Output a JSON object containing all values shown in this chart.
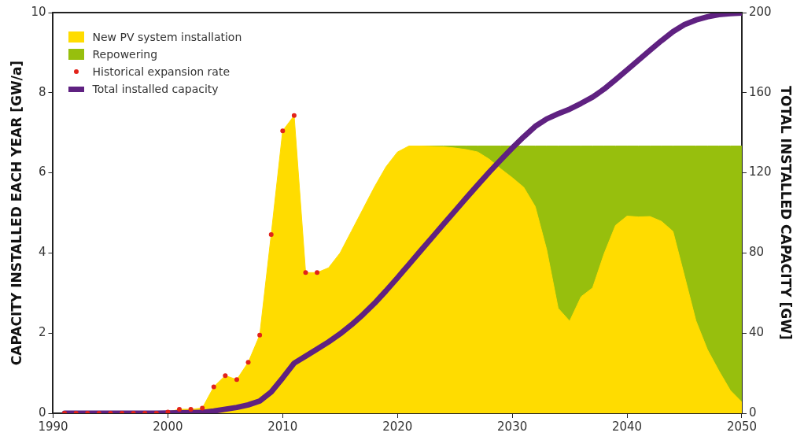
{
  "chart_data": {
    "type": "area",
    "stacked": true,
    "xlabel": null,
    "ylabel": "CAPACITY INSTALLED EACH YEAR [GW/a]",
    "y2label": "TOTAL INSTALLED CAPACITY [GW]",
    "x": [
      1991,
      1992,
      1993,
      1994,
      1995,
      1996,
      1997,
      1998,
      1999,
      2000,
      2001,
      2002,
      2003,
      2004,
      2005,
      2006,
      2007,
      2008,
      2009,
      2010,
      2011,
      2012,
      2013,
      2014,
      2015,
      2016,
      2017,
      2018,
      2019,
      2020,
      2021,
      2022,
      2023,
      2024,
      2025,
      2026,
      2027,
      2028,
      2029,
      2030,
      2031,
      2032,
      2033,
      2034,
      2035,
      2036,
      2037,
      2038,
      2039,
      2040,
      2041,
      2042,
      2043,
      2044,
      2045,
      2046,
      2047,
      2048,
      2049,
      2050
    ],
    "series": [
      {
        "name": "New PV system installation",
        "color": "#ffdc00",
        "values": [
          0,
          0,
          0,
          0,
          0,
          0,
          0,
          0,
          0,
          0.03,
          0.1,
          0.1,
          0.13,
          0.66,
          0.94,
          0.84,
          1.27,
          1.95,
          4.46,
          7.05,
          7.43,
          3.51,
          3.51,
          3.63,
          4.0,
          4.55,
          5.1,
          5.65,
          6.15,
          6.52,
          6.67,
          6.67,
          6.66,
          6.65,
          6.62,
          6.58,
          6.52,
          6.34,
          6.1,
          5.88,
          5.64,
          5.16,
          4.08,
          2.62,
          2.3,
          2.91,
          3.13,
          3.98,
          4.69,
          4.92,
          4.9,
          4.91,
          4.79,
          4.54,
          3.43,
          2.31,
          1.59,
          1.06,
          0.57,
          0.28
        ]
      },
      {
        "name": "Repowering",
        "color": "#97bf0d",
        "values": [
          null,
          null,
          null,
          null,
          null,
          null,
          null,
          null,
          null,
          null,
          null,
          null,
          null,
          null,
          null,
          null,
          null,
          null,
          null,
          null,
          null,
          null,
          null,
          null,
          null,
          null,
          null,
          null,
          null,
          null,
          null,
          0,
          0.01,
          0.02,
          0.05,
          0.09,
          0.15,
          0.33,
          0.57,
          0.79,
          1.03,
          1.51,
          2.59,
          4.05,
          4.37,
          3.76,
          3.54,
          2.69,
          1.98,
          1.75,
          1.77,
          1.76,
          1.88,
          2.13,
          3.24,
          4.36,
          5.08,
          5.61,
          6.1,
          6.39
        ]
      },
      {
        "name": "Historical expansion rate",
        "type": "scatter",
        "color": "#e2231a",
        "marker": "circle",
        "x": [
          1991,
          1992,
          1993,
          1994,
          1995,
          1996,
          1997,
          1998,
          1999,
          2000,
          2001,
          2002,
          2003,
          2004,
          2005,
          2006,
          2007,
          2008,
          2009,
          2010,
          2011,
          2012,
          2013
        ],
        "values": [
          0,
          0,
          0,
          0,
          0,
          0,
          0,
          0,
          0,
          0.03,
          0.1,
          0.1,
          0.13,
          0.66,
          0.94,
          0.84,
          1.27,
          1.95,
          4.46,
          7.05,
          7.43,
          3.51,
          3.51
        ]
      },
      {
        "name": "Total installed capacity",
        "type": "line",
        "axis": "y2",
        "color": "#5f2181",
        "values": [
          0,
          0,
          0,
          0,
          0,
          0,
          0,
          0,
          0,
          0.1,
          0.2,
          0.3,
          0.4,
          1.1,
          2.0,
          2.9,
          4.2,
          6.1,
          10.6,
          17.6,
          25.0,
          28.5,
          32.0,
          35.6,
          39.6,
          44.2,
          49.3,
          54.9,
          61.1,
          67.6,
          74.3,
          81.0,
          87.6,
          94.3,
          100.9,
          107.5,
          114.0,
          120.4,
          126.5,
          132.4,
          138.0,
          143.2,
          146.9,
          149.5,
          151.8,
          154.7,
          157.8,
          161.8,
          166.5,
          171.4,
          176.3,
          181.2,
          186.0,
          190.5,
          194.0,
          196.3,
          197.9,
          199.0,
          199.5,
          199.8
        ]
      }
    ],
    "xlim": [
      1990,
      2050
    ],
    "xticks": [
      1990,
      2000,
      2010,
      2020,
      2030,
      2040,
      2050
    ],
    "ylim": [
      0,
      10
    ],
    "yticks": [
      0,
      2,
      4,
      6,
      8,
      10
    ],
    "y2lim": [
      0,
      200
    ],
    "y2ticks": [
      0,
      40,
      80,
      120,
      160,
      200
    ],
    "grid": false,
    "legend": "top left"
  }
}
